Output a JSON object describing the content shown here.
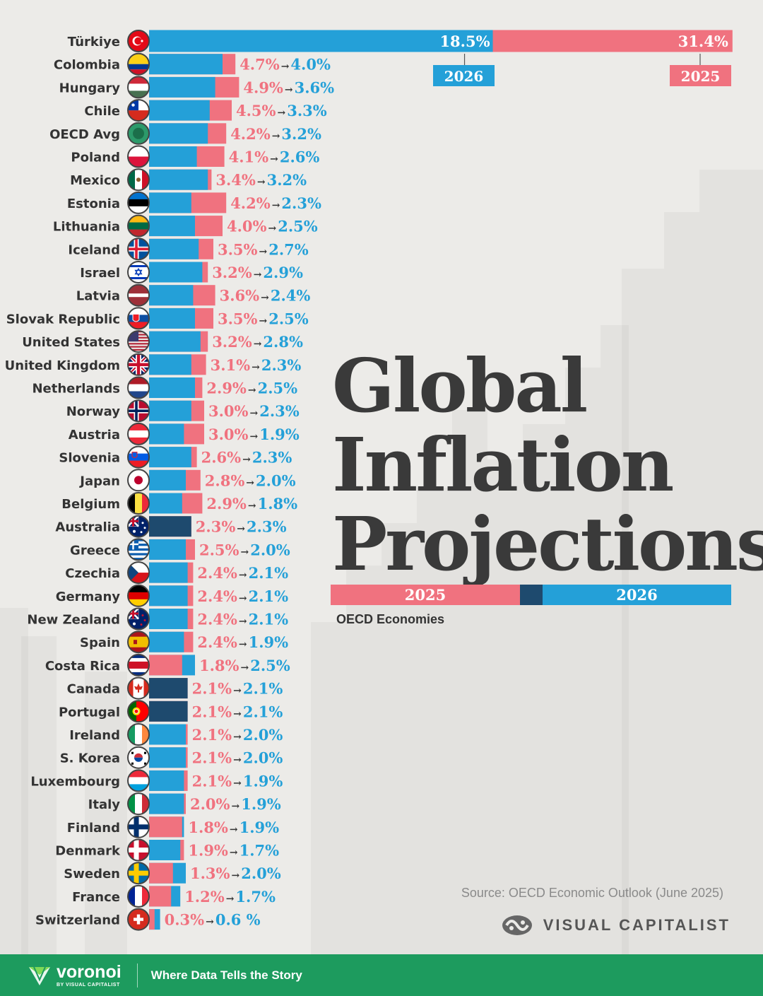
{
  "title_lines": [
    "Global",
    "Inflation",
    "Projections"
  ],
  "subtitle": "OECD Economies",
  "legend": {
    "label_2025": "2025",
    "label_2026": "2026"
  },
  "source": "Source: OECD Economic Outlook (June 2025)",
  "brand": "VISUAL CAPITALIST",
  "footer": {
    "logo_word": "voronoi",
    "logo_sub": "BY VISUAL CAPITALIST",
    "tagline": "Where Data Tells the Story"
  },
  "colors": {
    "y2025": "#f0727f",
    "y2026": "#24a0d8",
    "overlap": "#1e4a6e",
    "label_text": "#333333",
    "footer": "#1d9b5e"
  },
  "chart_data": {
    "type": "bar",
    "orientation": "horizontal",
    "unit": "%",
    "series_names": [
      "2025",
      "2026"
    ],
    "categories": [
      "Türkiye",
      "Colombia",
      "Hungary",
      "Chile",
      "OECD Avg",
      "Poland",
      "Mexico",
      "Estonia",
      "Lithuania",
      "Iceland",
      "Israel",
      "Latvia",
      "Slovak Republic",
      "United States",
      "United Kingdom",
      "Netherlands",
      "Norway",
      "Austria",
      "Slovenia",
      "Japan",
      "Belgium",
      "Australia",
      "Greece",
      "Czechia",
      "Germany",
      "New Zealand",
      "Spain",
      "Costa Rica",
      "Canada",
      "Portugal",
      "Ireland",
      "S. Korea",
      "Luxembourg",
      "Italy",
      "Finland",
      "Denmark",
      "Sweden",
      "France",
      "Switzerland"
    ],
    "values_2025": [
      31.4,
      4.7,
      4.9,
      4.5,
      4.2,
      4.1,
      3.4,
      4.2,
      4.0,
      3.5,
      3.2,
      3.6,
      3.5,
      3.2,
      3.1,
      2.9,
      3.0,
      3.0,
      2.6,
      2.8,
      2.9,
      2.3,
      2.5,
      2.4,
      2.4,
      2.4,
      2.4,
      1.8,
      2.1,
      2.1,
      2.1,
      2.1,
      2.1,
      2.0,
      1.8,
      1.9,
      1.3,
      1.2,
      0.3
    ],
    "values_2026": [
      18.5,
      4.0,
      3.6,
      3.3,
      3.2,
      2.6,
      3.2,
      2.3,
      2.5,
      2.7,
      2.9,
      2.4,
      2.5,
      2.8,
      2.3,
      2.5,
      2.3,
      1.9,
      2.3,
      2.0,
      1.8,
      2.3,
      2.0,
      2.1,
      2.1,
      2.1,
      1.9,
      2.5,
      2.1,
      2.1,
      2.0,
      2.0,
      1.9,
      1.9,
      1.9,
      1.7,
      2.0,
      1.7,
      0.6
    ],
    "labels_2025": [
      "31.4%",
      "4.7%",
      "4.9%",
      "4.5%",
      "4.2%",
      "4.1%",
      "3.4%",
      "4.2%",
      "4.0%",
      "3.5%",
      "3.2%",
      "3.6%",
      "3.5%",
      "3.2%",
      "3.1%",
      "2.9%",
      "3.0%",
      "3.0%",
      "2.6%",
      "2.8%",
      "2.9%",
      "2.3%",
      "2.5%",
      "2.4%",
      "2.4%",
      "2.4%",
      "2.4%",
      "1.8%",
      "2.1%",
      "2.1%",
      "2.1%",
      "2.1%",
      "2.1%",
      "2.0%",
      "1.8%",
      "1.9%",
      "1.3%",
      "1.2%",
      "0.3%"
    ],
    "labels_2026": [
      "18.5%",
      "4.0%",
      "3.6%",
      "3.3%",
      "3.2%",
      "2.6%",
      "3.2%",
      "2.3%",
      "2.5%",
      "2.7%",
      "2.9%",
      "2.4%",
      "2.5%",
      "2.8%",
      "2.3%",
      "2.5%",
      "2.3%",
      "1.9%",
      "2.3%",
      "2.0%",
      "1.8%",
      "2.3%",
      "2.0%",
      "2.1%",
      "2.1%",
      "2.1%",
      "1.9%",
      "2.5%",
      "2.1%",
      "2.1%",
      "2.0%",
      "2.0%",
      "1.9%",
      "1.9%",
      "1.9%",
      "1.7%",
      "2.0%",
      "1.7%",
      "0.6 %"
    ],
    "arrow_glyph": "→",
    "flags": [
      "turkiye",
      "colombia",
      "hungary",
      "chile",
      "oecd",
      "poland",
      "mexico",
      "estonia",
      "lithuania",
      "iceland",
      "israel",
      "latvia",
      "slovakia",
      "usa",
      "uk",
      "netherlands",
      "norway",
      "austria",
      "slovenia",
      "japan",
      "belgium",
      "australia",
      "greece",
      "czechia",
      "germany",
      "new-zealand",
      "spain",
      "costa-rica",
      "canada",
      "portugal",
      "ireland",
      "south-korea",
      "luxembourg",
      "italy",
      "finland",
      "denmark",
      "sweden",
      "france",
      "switzerland"
    ],
    "grid": false,
    "legend_placement": "center-right"
  }
}
